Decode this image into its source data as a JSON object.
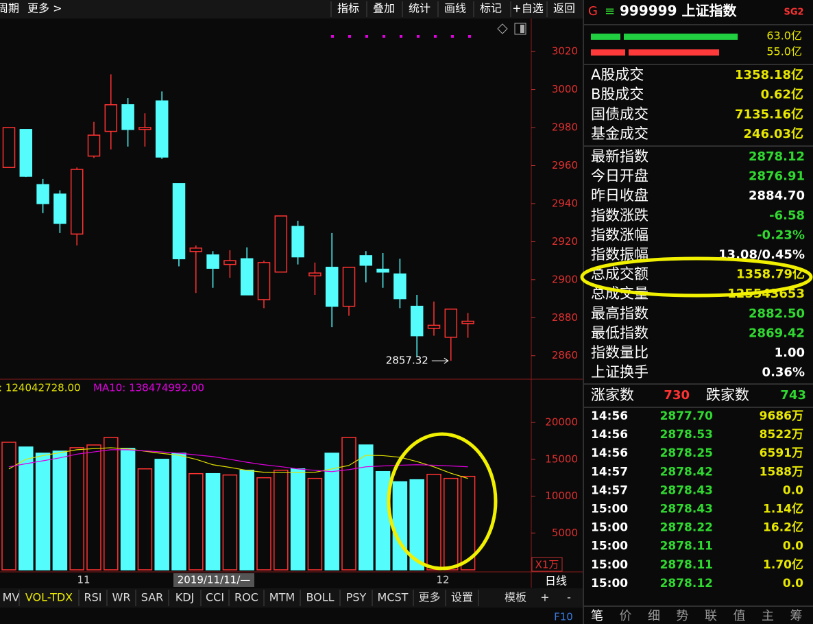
{
  "toolbar": {
    "left": [
      "周期",
      "更多 >"
    ],
    "right": [
      "指标",
      "叠加",
      "统计",
      "画线",
      "标记",
      "+自选",
      "返回"
    ]
  },
  "kline": {
    "type": "candlestick",
    "up_color": "#ff3232",
    "down_color": "#54fcfc",
    "open": [
      2959,
      2979,
      2950,
      2945,
      2924,
      2965,
      2978,
      2992,
      2979,
      2994,
      2950.5,
      2914.8,
      2913,
      2908,
      2911,
      2889.5,
      2904,
      2928,
      2902,
      2906.5,
      2886,
      2912.6,
      2905.5,
      2903,
      2886,
      2874.4,
      2869.7,
      2876.91
    ],
    "high": [
      2980,
      2979,
      2953,
      2947,
      2959,
      2983,
      3008,
      2995.5,
      2987.5,
      2999,
      2950.5,
      2918,
      2915,
      2915.5,
      2917,
      2910,
      2933.5,
      2931,
      2909,
      2924.5,
      2906.5,
      2915,
      2914,
      2911,
      2892,
      2888.5,
      2884.5,
      2882.5
    ],
    "low": [
      2959,
      2954,
      2935,
      2924.5,
      2918,
      2964,
      2968.5,
      2970,
      2970,
      2963.5,
      2907,
      2893,
      2895.7,
      2901,
      2892,
      2885,
      2904,
      2908,
      2892,
      2875,
      2881,
      2898.6,
      2895.7,
      2885,
      2859.6,
      2870.5,
      2857.32,
      2869.42
    ],
    "close": [
      2980,
      2954.4,
      2940,
      2929.6,
      2958,
      2976,
      2992,
      2979,
      2980,
      2964.5,
      2911,
      2916.6,
      2906,
      2910,
      2892,
      2909,
      2933.5,
      2912,
      2903.5,
      2886,
      2906.5,
      2907.6,
      2904,
      2890,
      2870.5,
      2876,
      2884.5,
      2878.12
    ],
    "ylim": [
      2848,
      3037
    ],
    "yticks": [
      2860,
      2880,
      2900,
      2920,
      2940,
      2960,
      2980,
      3000,
      3020
    ],
    "low_label": "2857.32"
  },
  "volume": {
    "type": "bar",
    "ma_labels": [
      ": 124042728.00",
      "MA10: 138474992.00"
    ],
    "ma_colors": [
      "#e0e000",
      "#e000e0"
    ],
    "values": [
      17315,
      16667,
      15833,
      16111,
      16574,
      16944,
      17963,
      16481,
      13704,
      15000,
      15833,
      13056,
      13056,
      12870,
      13519,
      12500,
      13519,
      13704,
      12407,
      15833,
      17963,
      16944,
      13333,
      11944,
      12222,
      12963,
      12407,
      12685
    ],
    "ma5": [
      13700,
      15000,
      15500,
      15900,
      16300,
      16450,
      16570,
      16400,
      16100,
      15800,
      15550,
      15000,
      14260,
      13900,
      13500,
      13240,
      13200,
      13200,
      13240,
      13700,
      14170,
      15550,
      15500,
      15280,
      14700,
      13980,
      13100,
      12400
    ],
    "ma10": [
      13980,
      14400,
      14800,
      15200,
      15700,
      16000,
      16300,
      16300,
      16150,
      16000,
      15830,
      15600,
      15370,
      15000,
      14600,
      14260,
      14000,
      13700,
      13500,
      13330,
      13600,
      13980,
      14100,
      14200,
      14260,
      14200,
      14100,
      13980
    ],
    "ylim": [
      0,
      25500
    ],
    "yticks": [
      5000,
      10000,
      15000,
      20000
    ],
    "unit": "X1万"
  },
  "x_axis": {
    "labels": [
      "11",
      "2019/11/11/—",
      "12"
    ],
    "period": "日线"
  },
  "indicator_tabs": [
    "MV",
    "VOL-TDX",
    "RSI",
    "WR",
    "SAR",
    "KDJ",
    "CCI",
    "ROC",
    "MTM",
    "BOLL",
    "PSY",
    "MCST",
    "更多",
    "设置"
  ],
  "template_tabs": [
    "模板",
    "+",
    "-"
  ],
  "f10": "F10",
  "quote": {
    "market": "G",
    "menu": "≡",
    "title": "999999 上证指数",
    "tag": "SG2",
    "buy": {
      "value": 63.0,
      "label": "63.0亿"
    },
    "sell": {
      "value": 55.0,
      "label": "55.0亿"
    },
    "turnover": [
      {
        "label": "A股成交",
        "value": "1358.18亿"
      },
      {
        "label": "B股成交",
        "value": "0.62亿"
      },
      {
        "label": "国债成交",
        "value": "7135.16亿"
      },
      {
        "label": "基金成交",
        "value": "246.03亿"
      }
    ],
    "stats": [
      {
        "label": "最新指数",
        "value": "2878.12",
        "color": "#30d830"
      },
      {
        "label": "今日开盘",
        "value": "2876.91",
        "color": "#30d830"
      },
      {
        "label": "昨日收盘",
        "value": "2884.70",
        "color": "#ffffff"
      },
      {
        "label": "指数涨跌",
        "value": "-6.58",
        "color": "#30d830"
      },
      {
        "label": "指数涨幅",
        "value": "-0.23%",
        "color": "#30d830"
      },
      {
        "label": "指数振幅",
        "value": "13.08/0.45%",
        "color": "#ffffff"
      },
      {
        "label": "总成交额",
        "value": "1358.79亿",
        "color": "#e8e800"
      },
      {
        "label": "总成交量",
        "value": "125543653",
        "color": "#e8e800"
      },
      {
        "label": "最高指数",
        "value": "2882.50",
        "color": "#30d830"
      },
      {
        "label": "最低指数",
        "value": "2869.42",
        "color": "#30d830"
      },
      {
        "label": "指数量比",
        "value": "1.00",
        "color": "#ffffff"
      },
      {
        "label": "上证换手",
        "value": "0.36%",
        "color": "#ffffff"
      }
    ],
    "breadth": {
      "up_label": "涨家数",
      "up": "730",
      "down_label": "跌家数",
      "down": "743"
    },
    "ticks": [
      [
        "14:56",
        "2877.70",
        "9686万"
      ],
      [
        "14:56",
        "2878.53",
        "8522万"
      ],
      [
        "14:56",
        "2878.25",
        "6591万"
      ],
      [
        "14:57",
        "2878.42",
        "1588万"
      ],
      [
        "14:57",
        "2878.43",
        "0.0"
      ],
      [
        "15:00",
        "2878.43",
        "1.14亿"
      ],
      [
        "15:00",
        "2878.22",
        "16.2亿"
      ],
      [
        "15:00",
        "2878.11",
        "0.0"
      ],
      [
        "15:00",
        "2878.11",
        "1.70亿"
      ],
      [
        "15:00",
        "2878.12",
        "0.0"
      ]
    ],
    "tabs": [
      "笔",
      "价",
      "细",
      "势",
      "联",
      "值",
      "主",
      "筹"
    ]
  }
}
